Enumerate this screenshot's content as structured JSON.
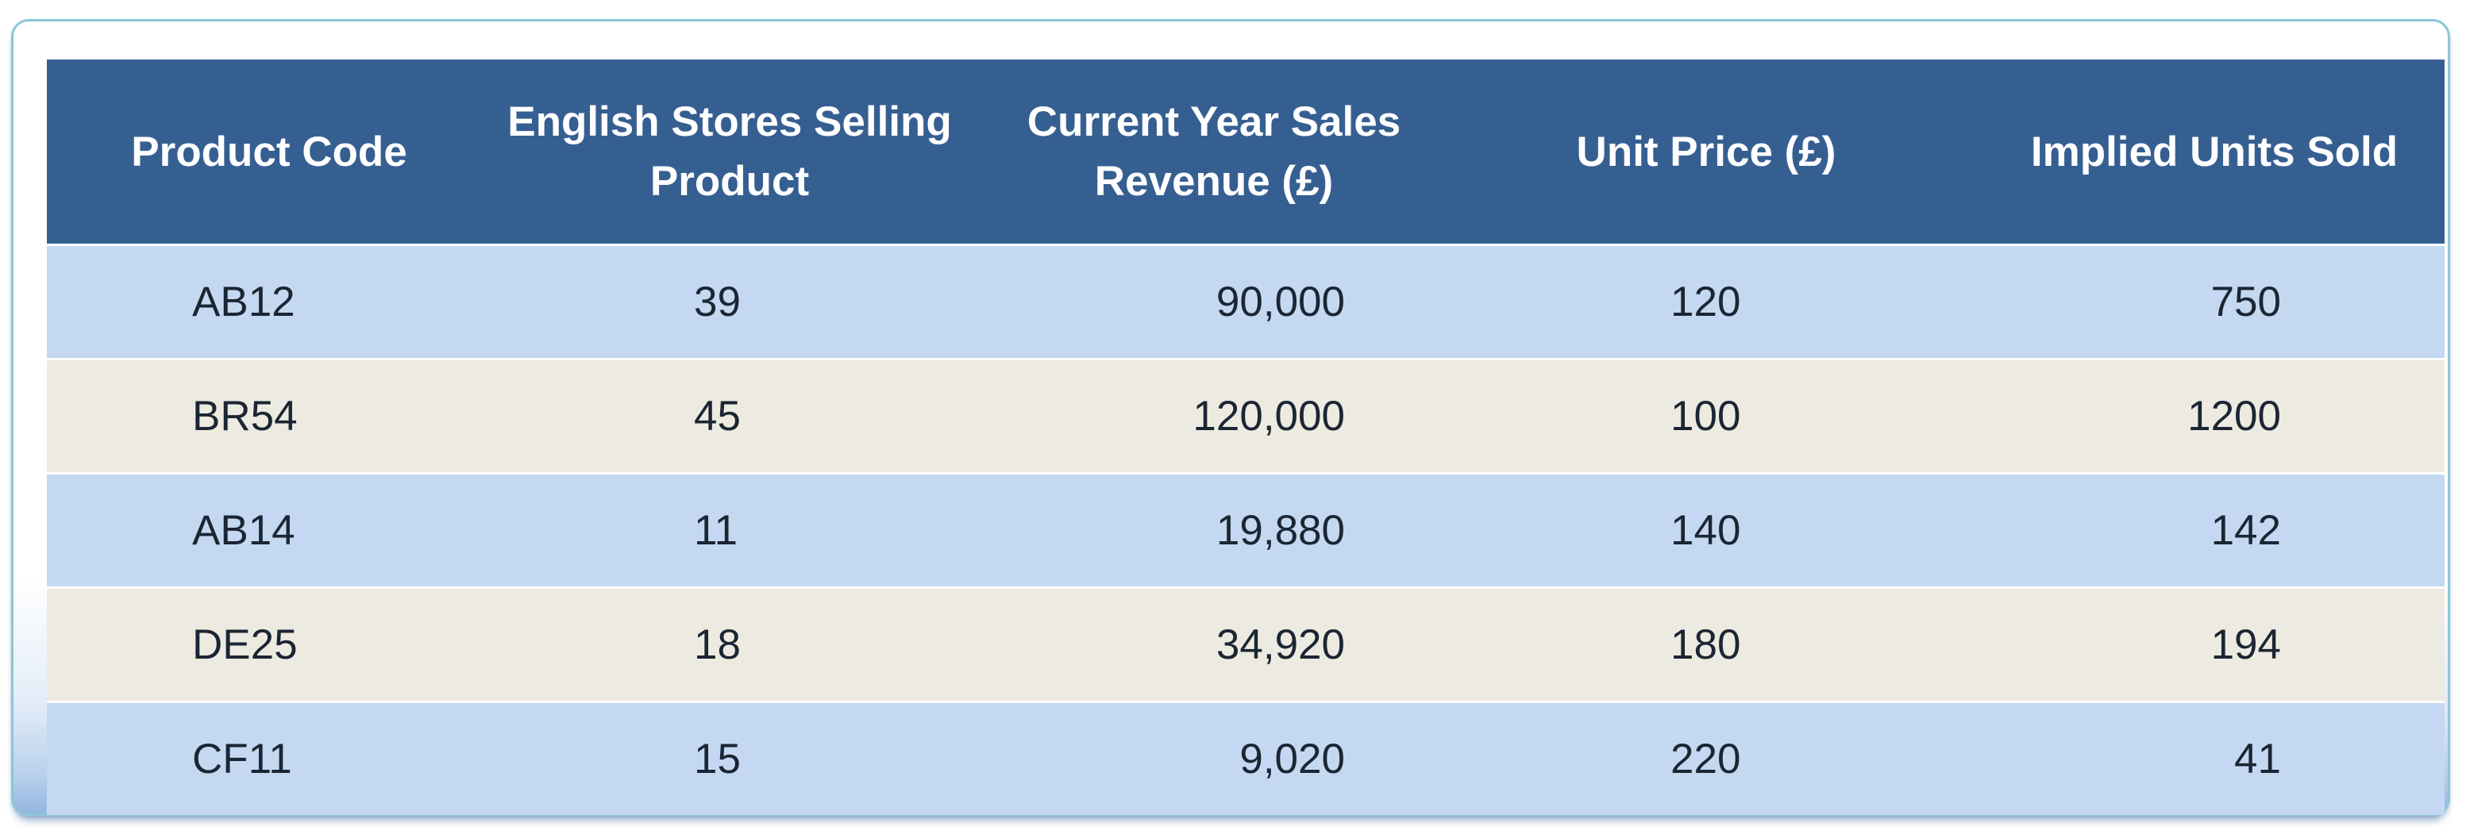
{
  "table": {
    "headers": {
      "code": "Product Code",
      "stores_line1": "English Stores Selling",
      "stores_line2": "Product",
      "revenue_line1": "Current Year Sales",
      "revenue_line2": "Revenue (£)",
      "price": "Unit Price (£)",
      "units": "Implied Units Sold"
    },
    "rows": [
      {
        "code": "AB12",
        "stores": "39",
        "revenue": "90,000",
        "price": "120",
        "units": "750"
      },
      {
        "code": "BR54",
        "stores": "45",
        "revenue": "120,000",
        "price": "100",
        "units": "1200"
      },
      {
        "code": "AB14",
        "stores": "11",
        "revenue": "19,880",
        "price": "140",
        "units": "142"
      },
      {
        "code": "DE25",
        "stores": "18",
        "revenue": "34,920",
        "price": "180",
        "units": "194"
      },
      {
        "code": "CF11",
        "stores": "15",
        "revenue": "9,020",
        "price": "220",
        "units": "41"
      }
    ]
  },
  "colors": {
    "header_bg": "#365f91",
    "row_blue": "#c4d8f1",
    "row_beige": "#edebe1",
    "frame_border": "#8cc6d6"
  }
}
